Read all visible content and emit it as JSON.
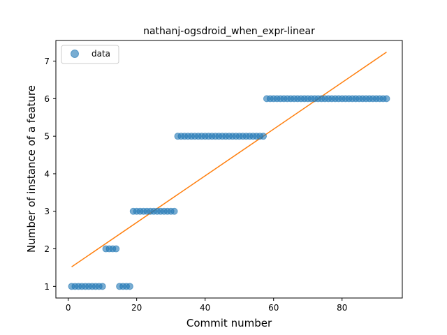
{
  "chart_data": {
    "type": "scatter",
    "title": "nathanj-ogsdroid_when_expr-linear",
    "xlabel": "Commit number",
    "ylabel": "Number of instance of a feature",
    "xlim": [
      -3.6,
      97.6
    ],
    "ylim": [
      0.69,
      7.55
    ],
    "xticks": [
      0,
      20,
      40,
      60,
      80
    ],
    "yticks": [
      1,
      2,
      3,
      4,
      5,
      6,
      7
    ],
    "grid": false,
    "legend": {
      "placement": "top-left",
      "entries": [
        "data"
      ]
    },
    "colors": {
      "data": "#1f77b4",
      "fit": "#ff7f0e"
    },
    "series": [
      {
        "name": "data",
        "kind": "scatter",
        "x": [
          1,
          2,
          3,
          4,
          5,
          6,
          7,
          8,
          9,
          10,
          11,
          12,
          13,
          14,
          15,
          16,
          17,
          18,
          19,
          20,
          21,
          22,
          23,
          24,
          25,
          26,
          27,
          28,
          29,
          30,
          31,
          32,
          33,
          34,
          35,
          36,
          37,
          38,
          39,
          40,
          41,
          42,
          43,
          44,
          45,
          46,
          47,
          48,
          49,
          50,
          51,
          52,
          53,
          54,
          55,
          56,
          57,
          58,
          59,
          60,
          61,
          62,
          63,
          64,
          65,
          66,
          67,
          68,
          69,
          70,
          71,
          72,
          73,
          74,
          75,
          76,
          77,
          78,
          79,
          80,
          81,
          82,
          83,
          84,
          85,
          86,
          87,
          88,
          89,
          90,
          91,
          92,
          93
        ],
        "y": [
          1,
          1,
          1,
          1,
          1,
          1,
          1,
          1,
          1,
          1,
          2,
          2,
          2,
          2,
          1,
          1,
          1,
          1,
          3,
          3,
          3,
          3,
          3,
          3,
          3,
          3,
          3,
          3,
          3,
          3,
          3,
          5,
          5,
          5,
          5,
          5,
          5,
          5,
          5,
          5,
          5,
          5,
          5,
          5,
          5,
          5,
          5,
          5,
          5,
          5,
          5,
          5,
          5,
          5,
          5,
          5,
          5,
          6,
          6,
          6,
          6,
          6,
          6,
          6,
          6,
          6,
          6,
          6,
          6,
          6,
          6,
          6,
          6,
          6,
          6,
          6,
          6,
          6,
          6,
          6,
          6,
          6,
          6,
          6,
          6,
          6,
          6,
          6,
          6,
          6,
          6,
          6,
          6
        ]
      },
      {
        "kind": "line",
        "x": [
          1,
          93
        ],
        "y": [
          1.52,
          7.24
        ]
      }
    ]
  }
}
